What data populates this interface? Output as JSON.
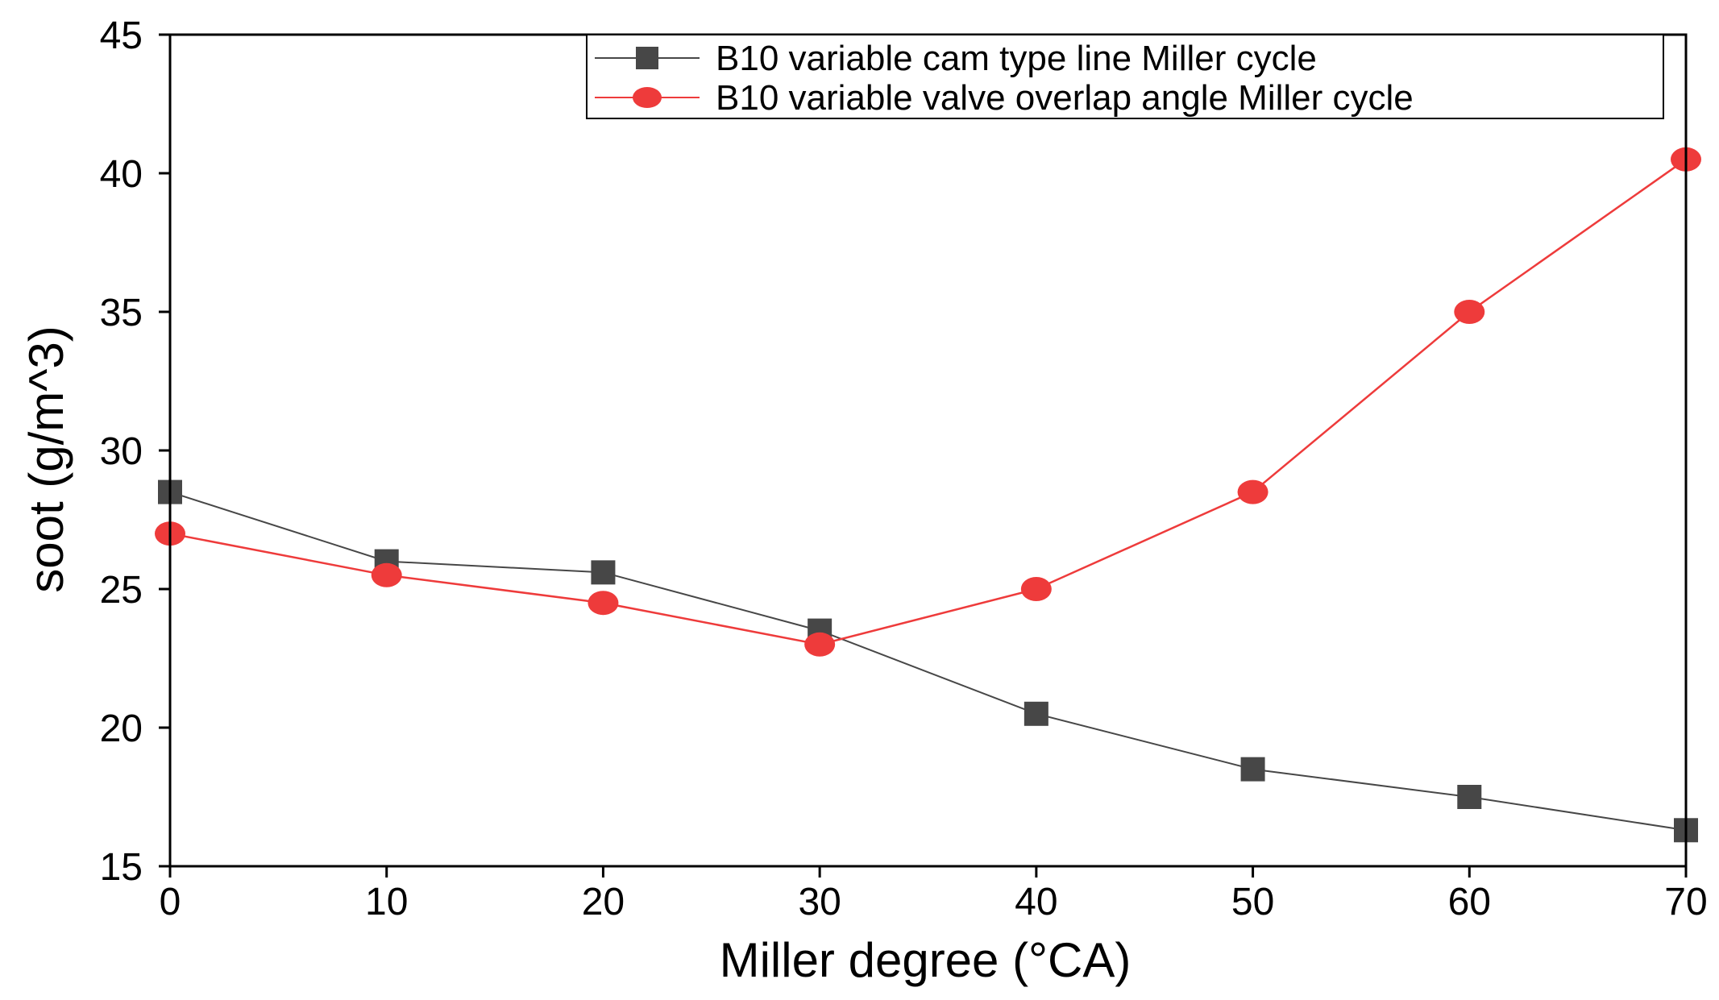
{
  "chart_data": {
    "type": "line",
    "title": "",
    "xlabel": "Miller degree (°CA)",
    "ylabel": "soot (g/m^3)",
    "xlim": [
      0,
      70
    ],
    "ylim": [
      15,
      45
    ],
    "xticks": [
      0,
      10,
      20,
      30,
      40,
      50,
      60,
      70
    ],
    "yticks": [
      15,
      20,
      25,
      30,
      35,
      40,
      45
    ],
    "grid": false,
    "legend_position": "top-right",
    "x": [
      0,
      10,
      20,
      30,
      40,
      50,
      60,
      70
    ],
    "series": [
      {
        "name": "B10 variable cam type line Miller cycle",
        "marker": "square",
        "color": "#474747",
        "values": [
          28.5,
          26.0,
          25.6,
          23.5,
          20.5,
          18.5,
          17.5,
          16.3
        ]
      },
      {
        "name": "B10 variable valve overlap angle Miller cycle",
        "marker": "circle",
        "color": "#ee3b3b",
        "values": [
          27.0,
          25.5,
          24.5,
          23.0,
          25.0,
          28.5,
          35.0,
          40.5
        ]
      }
    ]
  }
}
